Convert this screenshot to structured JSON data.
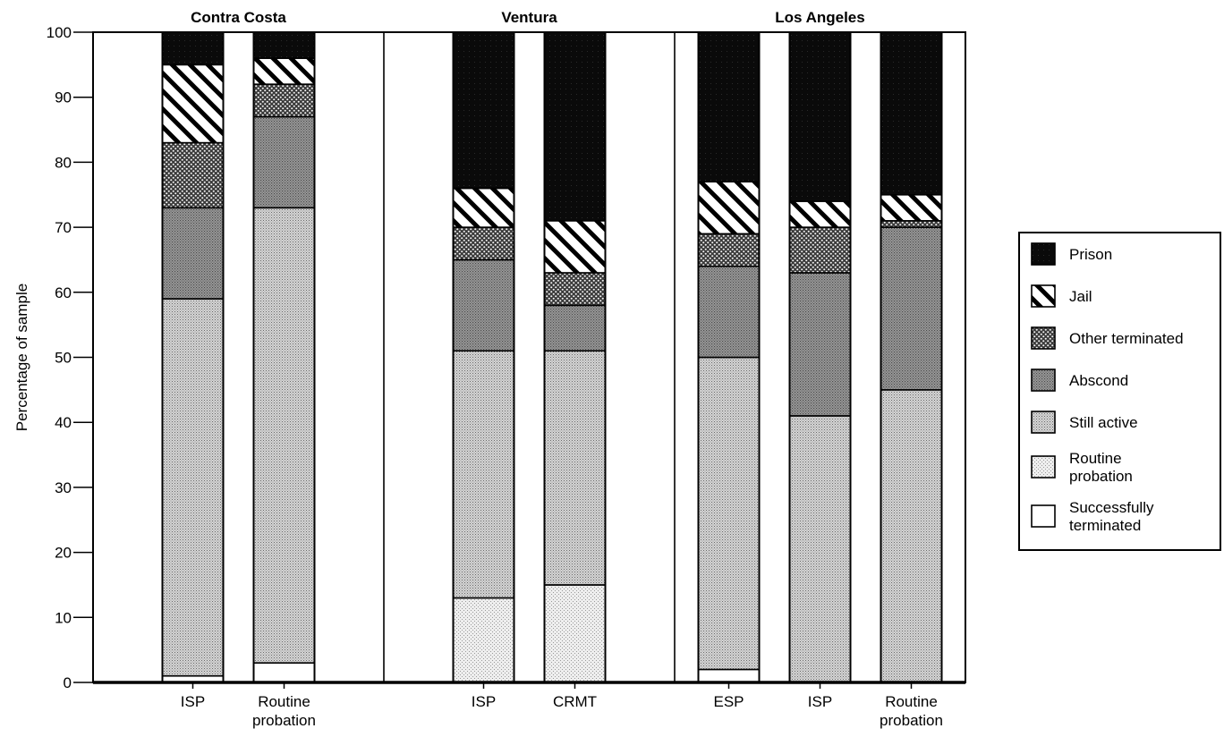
{
  "chart_data": {
    "type": "bar",
    "stacked": true,
    "ylabel": "Percentage of sample",
    "ylim": [
      0,
      100
    ],
    "yticks": [
      0,
      10,
      20,
      30,
      40,
      50,
      60,
      70,
      80,
      90,
      100
    ],
    "grid": false,
    "legend_position": "right",
    "groups": [
      {
        "name": "Contra Costa",
        "bars": [
          {
            "label": "ISP",
            "values": {
              "Successfully terminated": 1,
              "Routine probation": 0,
              "Still active": 58,
              "Abscond": 14,
              "Other terminated": 10,
              "Jail": 12,
              "Prison": 5
            }
          },
          {
            "label": "Routine probation",
            "values": {
              "Successfully terminated": 3,
              "Routine probation": 0,
              "Still active": 70,
              "Abscond": 14,
              "Other terminated": 5,
              "Jail": 4,
              "Prison": 4
            }
          }
        ]
      },
      {
        "name": "Ventura",
        "bars": [
          {
            "label": "ISP",
            "values": {
              "Successfully terminated": 0,
              "Routine probation": 13,
              "Still active": 38,
              "Abscond": 14,
              "Other terminated": 5,
              "Jail": 6,
              "Prison": 24
            }
          },
          {
            "label": "CRMT",
            "values": {
              "Successfully terminated": 0,
              "Routine probation": 15,
              "Still active": 36,
              "Abscond": 7,
              "Other terminated": 5,
              "Jail": 8,
              "Prison": 29
            }
          }
        ]
      },
      {
        "name": "Los Angeles",
        "bars": [
          {
            "label": "ESP",
            "values": {
              "Successfully terminated": 2,
              "Routine probation": 0,
              "Still active": 48,
              "Abscond": 14,
              "Other terminated": 5,
              "Jail": 8,
              "Prison": 23
            }
          },
          {
            "label": "ISP",
            "values": {
              "Successfully terminated": 0,
              "Routine probation": 0,
              "Still active": 41,
              "Abscond": 22,
              "Other terminated": 7,
              "Jail": 4,
              "Prison": 26
            }
          },
          {
            "label": "Routine probation",
            "values": {
              "Successfully terminated": 0,
              "Routine probation": 0,
              "Still active": 45,
              "Abscond": 25,
              "Other terminated": 1,
              "Jail": 4,
              "Prison": 25
            }
          }
        ]
      }
    ],
    "series": [
      {
        "name": "Successfully terminated",
        "pattern": "white"
      },
      {
        "name": "Routine probation",
        "pattern": "light-stipple"
      },
      {
        "name": "Still active",
        "pattern": "medium-stipple"
      },
      {
        "name": "Abscond",
        "pattern": "dark-stipple"
      },
      {
        "name": "Other terminated",
        "pattern": "dots"
      },
      {
        "name": "Jail",
        "pattern": "diagonal"
      },
      {
        "name": "Prison",
        "pattern": "solid-black"
      }
    ],
    "legend_order": [
      "Prison",
      "Jail",
      "Other terminated",
      "Abscond",
      "Still active",
      "Routine probation",
      "Successfully terminated"
    ],
    "legend_labels": {
      "Prison": [
        "Prison"
      ],
      "Jail": [
        "Jail"
      ],
      "Other terminated": [
        "Other terminated"
      ],
      "Abscond": [
        "Abscond"
      ],
      "Still active": [
        "Still active"
      ],
      "Routine probation": [
        "Routine",
        "probation"
      ],
      "Successfully terminated": [
        "Successfully",
        "terminated"
      ]
    }
  }
}
